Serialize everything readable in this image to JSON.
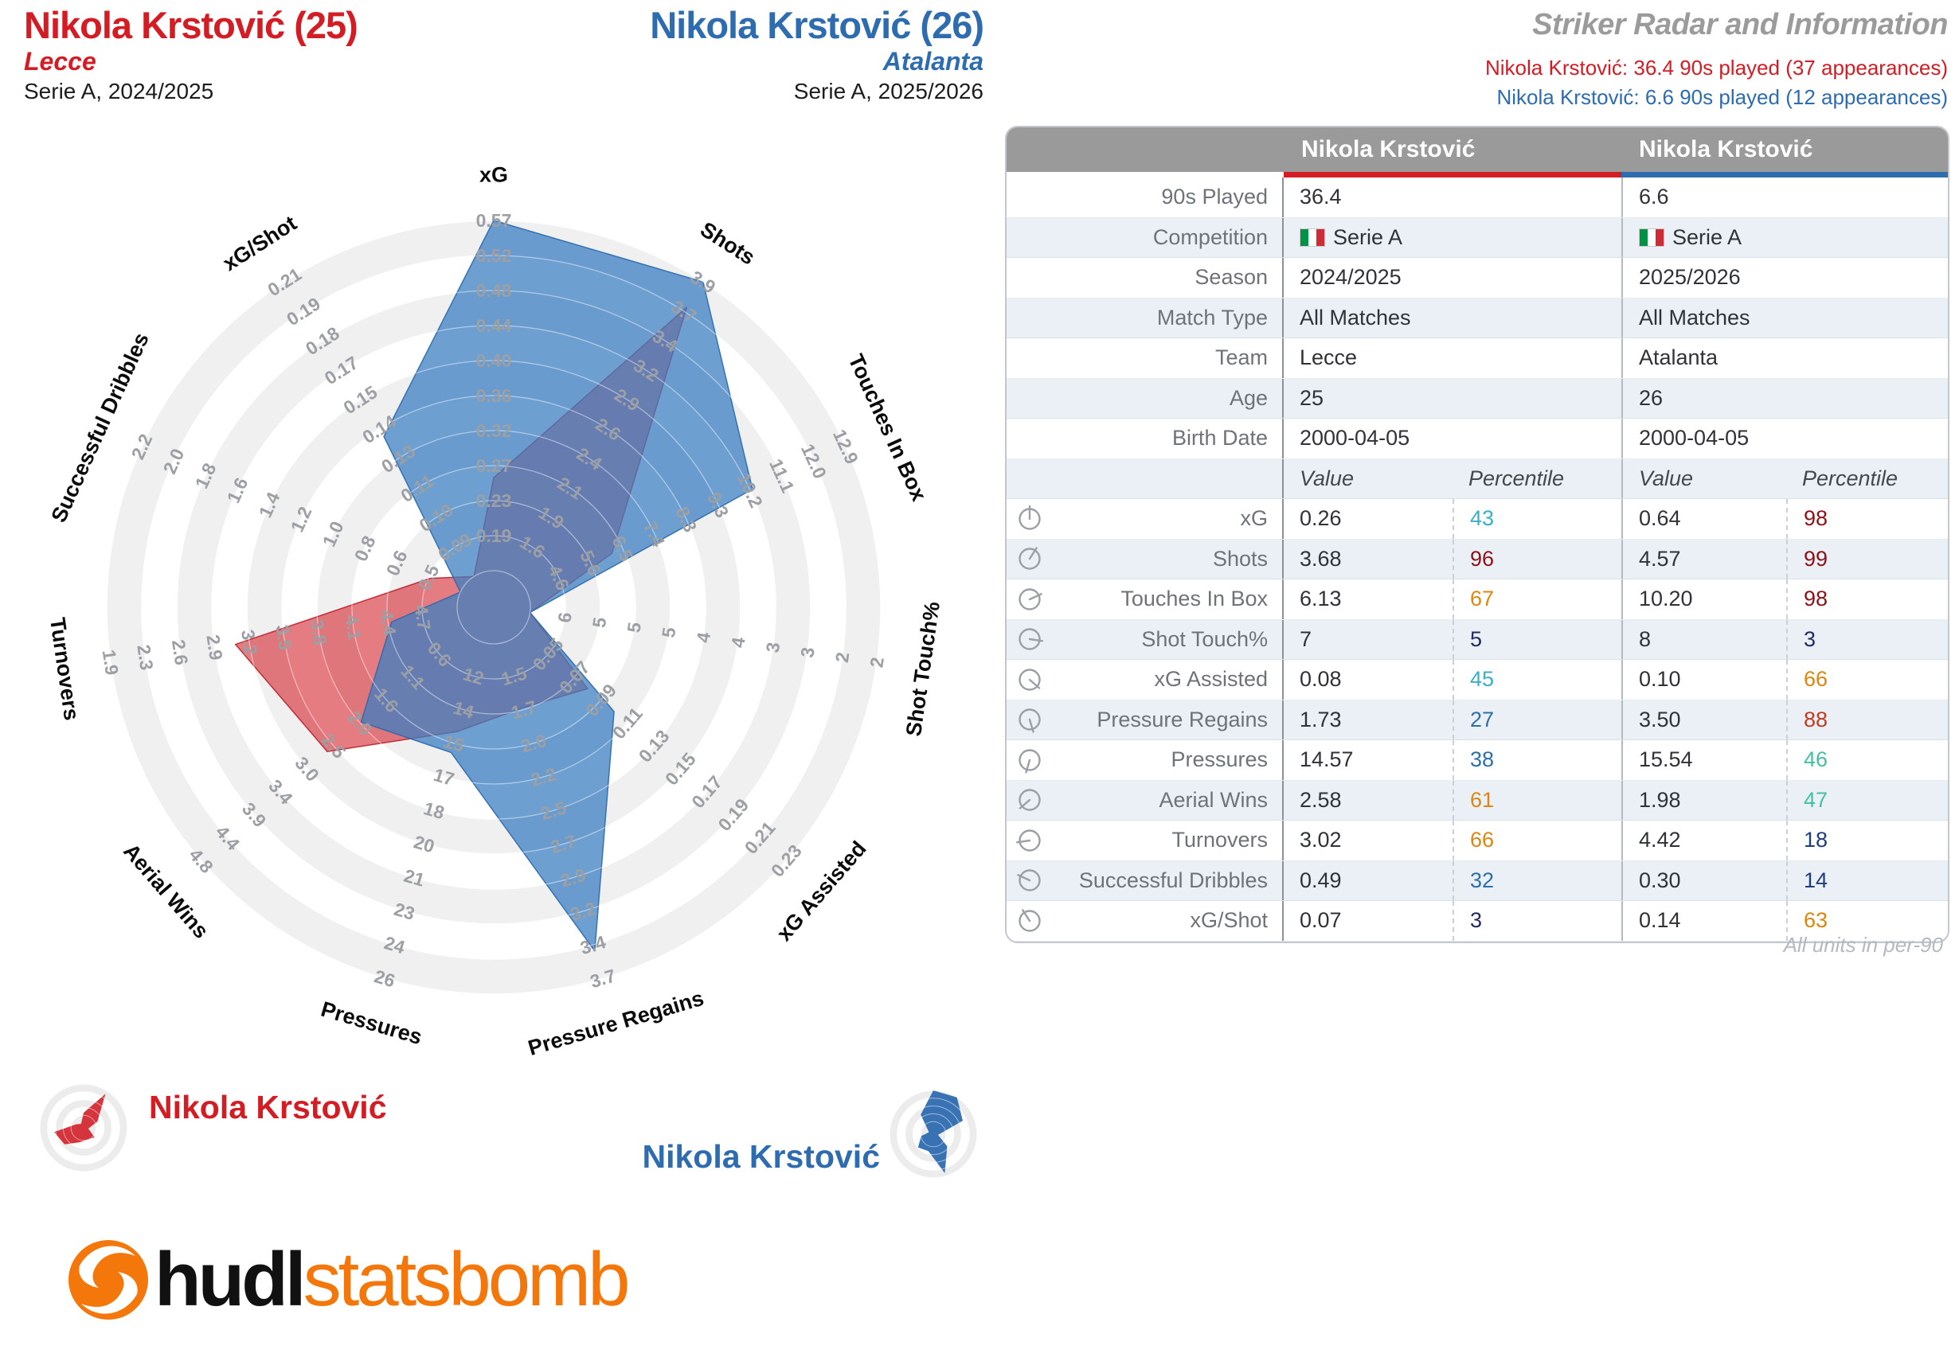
{
  "header": {
    "left": {
      "name": "Nikola Krstović (25)",
      "team": "Lecce",
      "competition": "Serie A, 2024/2025"
    },
    "mid": {
      "name": "Nikola Krstović (26)",
      "team": "Atalanta",
      "competition": "Serie A, 2025/2026"
    },
    "right": {
      "title": "Striker Radar and Information",
      "subtitle_red": "Nikola Krstović: 36.4 90s played (37 appearances)",
      "subtitle_blue": "Nikola Krstović: 6.6 90s played (12 appearances)"
    }
  },
  "colors": {
    "red": "#d41c24",
    "blue": "#2e6cb0",
    "title_gray": "#9b9b9b",
    "table_header_bg": "#9a9a9a",
    "alt_row": "#eaf0f6",
    "ring_gray": "#f0f0f1",
    "ring_label": "#9c9fa4",
    "poly_red_fill": "rgba(211,43,52,0.62)",
    "poly_red_stroke": "rgba(185,25,35,0.85)",
    "poly_blue_fill": "rgba(62,127,193,0.75)",
    "poly_blue_stroke": "rgba(42,105,172,0.9)",
    "logo_orange": "#f4770b"
  },
  "chart_data": {
    "type": "radar",
    "axes": [
      {
        "label": "xG",
        "rings": [
          "0.57",
          "0.52",
          "0.48",
          "0.44",
          "0.40",
          "0.36",
          "0.32",
          "0.27",
          "0.23",
          "0.19"
        ]
      },
      {
        "label": "Shots",
        "rings": [
          "3.9",
          "3.7",
          "3.4",
          "3.2",
          "2.9",
          "2.6",
          "2.4",
          "2.1",
          "1.9",
          "1.6"
        ]
      },
      {
        "label": "Touches In Box",
        "rings": [
          "12.9",
          "12.0",
          "11.1",
          "10.2",
          "9.3",
          "8.3",
          "7.4",
          "6.5",
          "5.6",
          "4.6"
        ]
      },
      {
        "label": "Shot Touch%",
        "rings": [
          "2",
          "2",
          "3",
          "3",
          "4",
          "4",
          "5",
          "5",
          "5",
          "6"
        ]
      },
      {
        "label": "xG Assisted",
        "rings": [
          "0.23",
          "0.21",
          "0.19",
          "0.17",
          "0.15",
          "0.13",
          "0.11",
          "0.09",
          "0.07",
          "0.05"
        ]
      },
      {
        "label": "Pressure Regains",
        "rings": [
          "3.7",
          "3.4",
          "3.2",
          "2.9",
          "2.7",
          "2.5",
          "2.2",
          "2.0",
          "1.7",
          "1.5"
        ]
      },
      {
        "label": "Pressures",
        "rings": [
          "26",
          "24",
          "23",
          "21",
          "20",
          "18",
          "17",
          "15",
          "14",
          "12"
        ]
      },
      {
        "label": "Aerial Wins",
        "rings": [
          "4.8",
          "4.4",
          "3.9",
          "3.4",
          "3.0",
          "2.5",
          "2.0",
          "1.6",
          "1.1",
          "0.6"
        ]
      },
      {
        "label": "Turnovers",
        "rings": [
          "1.9",
          "2.3",
          "2.6",
          "2.9",
          "3.2",
          "3.5",
          "3.8",
          "4.1",
          "4.4",
          "4.7"
        ]
      },
      {
        "label": "Successful Dribbles",
        "rings": [
          "2.2",
          "2.0",
          "1.8",
          "1.6",
          "1.4",
          "1.2",
          "1.0",
          "0.8",
          "0.6",
          "0.5"
        ]
      },
      {
        "label": "xG/Shot",
        "rings": [
          "0.21",
          "0.19",
          "0.18",
          "0.17",
          "0.15",
          "0.14",
          "0.13",
          "0.11",
          "0.10",
          "0.09"
        ]
      }
    ],
    "series": [
      {
        "name": "Nikola Krstović (Lecce 2024/2025)",
        "color_key": "red",
        "values": [
          0.26,
          3.68,
          6.13,
          7,
          0.08,
          1.73,
          14.57,
          2.58,
          3.02,
          0.49,
          0.07
        ],
        "percentiles": [
          43,
          96,
          67,
          5,
          45,
          27,
          38,
          61,
          66,
          32,
          3
        ]
      },
      {
        "name": "Nikola Krstović (Atalanta 2025/2026)",
        "color_key": "blue",
        "values": [
          0.64,
          4.57,
          10.2,
          8,
          0.1,
          3.5,
          15.54,
          1.98,
          4.42,
          0.3,
          0.14
        ],
        "percentiles": [
          98,
          99,
          98,
          3,
          66,
          88,
          46,
          47,
          18,
          14,
          63
        ]
      }
    ]
  },
  "table": {
    "col1_header": "Nikola Krstović",
    "col2_header": "Nikola Krstović",
    "info_rows": [
      {
        "label": "90s Played",
        "v1": "36.4",
        "v2": "6.6",
        "flag": false
      },
      {
        "label": "Competition",
        "v1": "Serie A",
        "v2": "Serie A",
        "flag": true
      },
      {
        "label": "Season",
        "v1": "2024/2025",
        "v2": "2025/2026",
        "flag": false
      },
      {
        "label": "Match Type",
        "v1": "All Matches",
        "v2": "All Matches",
        "flag": false
      },
      {
        "label": "Team",
        "v1": "Lecce",
        "v2": "Atalanta",
        "flag": false
      },
      {
        "label": "Age",
        "v1": "25",
        "v2": "26",
        "flag": false
      },
      {
        "label": "Birth Date",
        "v1": "2000-04-05",
        "v2": "2000-04-05",
        "flag": false
      }
    ],
    "subheader": {
      "value": "Value",
      "percentile": "Percentile"
    },
    "stat_rows": [
      {
        "label": "xG",
        "v1": "0.26",
        "p1": "43",
        "p1c": "#37b0c8",
        "v2": "0.64",
        "p2": "98",
        "p2c": "#8d1217"
      },
      {
        "label": "Shots",
        "v1": "3.68",
        "p1": "96",
        "p1c": "#8d1217",
        "v2": "4.57",
        "p2": "99",
        "p2c": "#8d1217"
      },
      {
        "label": "Touches In Box",
        "v1": "6.13",
        "p1": "67",
        "p1c": "#dd860f",
        "v2": "10.20",
        "p2": "98",
        "p2c": "#8d1217"
      },
      {
        "label": "Shot Touch%",
        "v1": "7",
        "p1": "5",
        "p1c": "#232a60",
        "v2": "8",
        "p2": "3",
        "p2c": "#232a60"
      },
      {
        "label": "xG Assisted",
        "v1": "0.08",
        "p1": "45",
        "p1c": "#37b0c8",
        "v2": "0.10",
        "p2": "66",
        "p2c": "#dd860f"
      },
      {
        "label": "Pressure Regains",
        "v1": "1.73",
        "p1": "27",
        "p1c": "#2d6fa8",
        "v2": "3.50",
        "p2": "88",
        "p2c": "#c13b1e"
      },
      {
        "label": "Pressures",
        "v1": "14.57",
        "p1": "38",
        "p1c": "#2d6fa8",
        "v2": "15.54",
        "p2": "46",
        "p2c": "#44bfa2"
      },
      {
        "label": "Aerial Wins",
        "v1": "2.58",
        "p1": "61",
        "p1c": "#dd860f",
        "v2": "1.98",
        "p2": "47",
        "p2c": "#44bfa2"
      },
      {
        "label": "Turnovers",
        "v1": "3.02",
        "p1": "66",
        "p1c": "#dd860f",
        "v2": "4.42",
        "p2": "18",
        "p2c": "#1d3e79"
      },
      {
        "label": "Successful Dribbles",
        "v1": "0.49",
        "p1": "32",
        "p1c": "#2d6fa8",
        "v2": "0.30",
        "p2": "14",
        "p2c": "#1d3e79"
      },
      {
        "label": "xG/Shot",
        "v1": "0.07",
        "p1": "3",
        "p1c": "#232a60",
        "v2": "0.14",
        "p2": "63",
        "p2c": "#dd860f"
      }
    ],
    "footnote": "All units in per-90"
  },
  "legend": {
    "red_label": "Nikola Krstović",
    "blue_label": "Nikola Krstović"
  },
  "logo": {
    "hudl": "hudl",
    "statsbomb": "statsbomb"
  }
}
